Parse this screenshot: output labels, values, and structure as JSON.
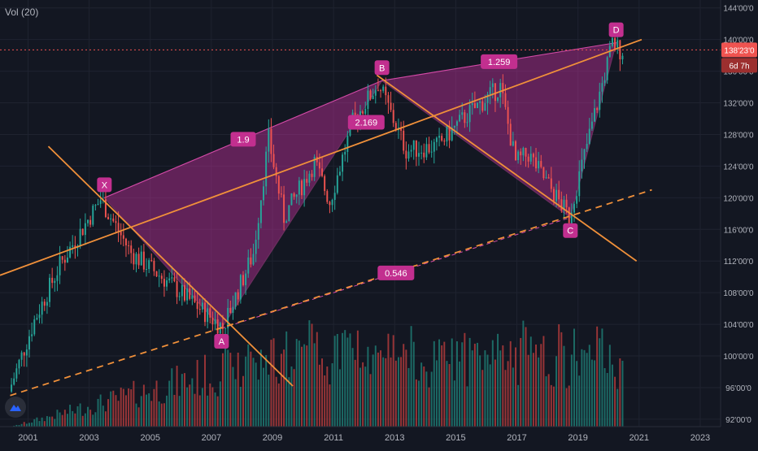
{
  "indicator_label": "Vol (20)",
  "colors": {
    "background": "#131722",
    "grid": "#1f2330",
    "up": "#26a69a",
    "down": "#ef5350",
    "vol_up": "#1e7a72",
    "vol_down": "#b23b3b",
    "trendline": "#f0903a",
    "pattern_fill": "#c0319a",
    "pattern_stroke": "#d54aa8",
    "point_label": "#c22f8f",
    "price_line": "#ef5350"
  },
  "chart_data": {
    "type": "candlestick",
    "x_axis": {
      "range": [
        "2000-02",
        "2023-09"
      ],
      "ticks": [
        "2001",
        "2003",
        "2005",
        "2007",
        "2009",
        "2011",
        "2013",
        "2015",
        "2017",
        "2019",
        "2021",
        "2023"
      ]
    },
    "y_axis": {
      "range": [
        88500,
        145000
      ],
      "tick_values": [
        92000,
        96000,
        100000,
        104000,
        108000,
        112000,
        116000,
        120000,
        124000,
        128000,
        132000,
        136000,
        140000,
        144000
      ],
      "tick_labels": [
        "92'00'0",
        "96'00'0",
        "100'00'0",
        "104'00'0",
        "108'00'0",
        "112'00'0",
        "116'00'0",
        "120'00'0",
        "124'00'0",
        "128'00'0",
        "132'00'0",
        "136'00'0",
        "140'00'0",
        "144'00'0"
      ]
    },
    "current_price": {
      "value": 138700,
      "label": "138'23'0",
      "countdown": "6d 7h"
    },
    "anchors": [
      {
        "date": "2000-06",
        "close": 95500
      },
      {
        "date": "2001-04",
        "close": 104500
      },
      {
        "date": "2002-02",
        "close": 111500
      },
      {
        "date": "2003-06",
        "close": 119800
      },
      {
        "date": "2004-06",
        "close": 113000
      },
      {
        "date": "2005-06",
        "close": 110000
      },
      {
        "date": "2007-06",
        "close": 103600
      },
      {
        "date": "2008-06",
        "close": 113000
      },
      {
        "date": "2008-12",
        "close": 127500
      },
      {
        "date": "2009-06",
        "close": 117500
      },
      {
        "date": "2010-06",
        "close": 124500
      },
      {
        "date": "2010-12",
        "close": 119500
      },
      {
        "date": "2011-09",
        "close": 129500
      },
      {
        "date": "2012-07",
        "close": 134500
      },
      {
        "date": "2013-06",
        "close": 126000
      },
      {
        "date": "2014-06",
        "close": 126500
      },
      {
        "date": "2015-06",
        "close": 130500
      },
      {
        "date": "2016-07",
        "close": 134000
      },
      {
        "date": "2017-01",
        "close": 124500
      },
      {
        "date": "2017-06",
        "close": 125500
      },
      {
        "date": "2018-10",
        "close": 117600
      },
      {
        "date": "2019-06",
        "close": 128000
      },
      {
        "date": "2020-03",
        "close": 139500
      },
      {
        "date": "2020-06",
        "close": 138700
      }
    ],
    "harmonic_pattern": {
      "points": [
        {
          "label": "X",
          "date": "2003-07",
          "price": 120000
        },
        {
          "label": "A",
          "date": "2007-05",
          "price": 103500
        },
        {
          "label": "B",
          "date": "2012-08",
          "price": 134800
        },
        {
          "label": "C",
          "date": "2018-10",
          "price": 117500
        },
        {
          "label": "D",
          "date": "2020-04",
          "price": 139600
        }
      ],
      "ratios": [
        "1.9",
        "2.169",
        "1.259",
        "0.546"
      ]
    },
    "trendlines": [
      {
        "from": {
          "date": "2000-02",
          "price": 110200
        },
        "to": {
          "date": "2021-02",
          "price": 140000
        },
        "style": "solid"
      },
      {
        "from": {
          "date": "2001-09",
          "price": 126500
        },
        "to": {
          "date": "2009-09",
          "price": 96200
        },
        "style": "solid"
      },
      {
        "from": {
          "date": "2012-06",
          "price": 135500
        },
        "to": {
          "date": "2020-12",
          "price": 112000
        },
        "style": "solid"
      },
      {
        "from": {
          "date": "2000-06",
          "price": 95000
        },
        "to": {
          "date": "2021-06",
          "price": 121000
        },
        "style": "dashed"
      }
    ]
  }
}
